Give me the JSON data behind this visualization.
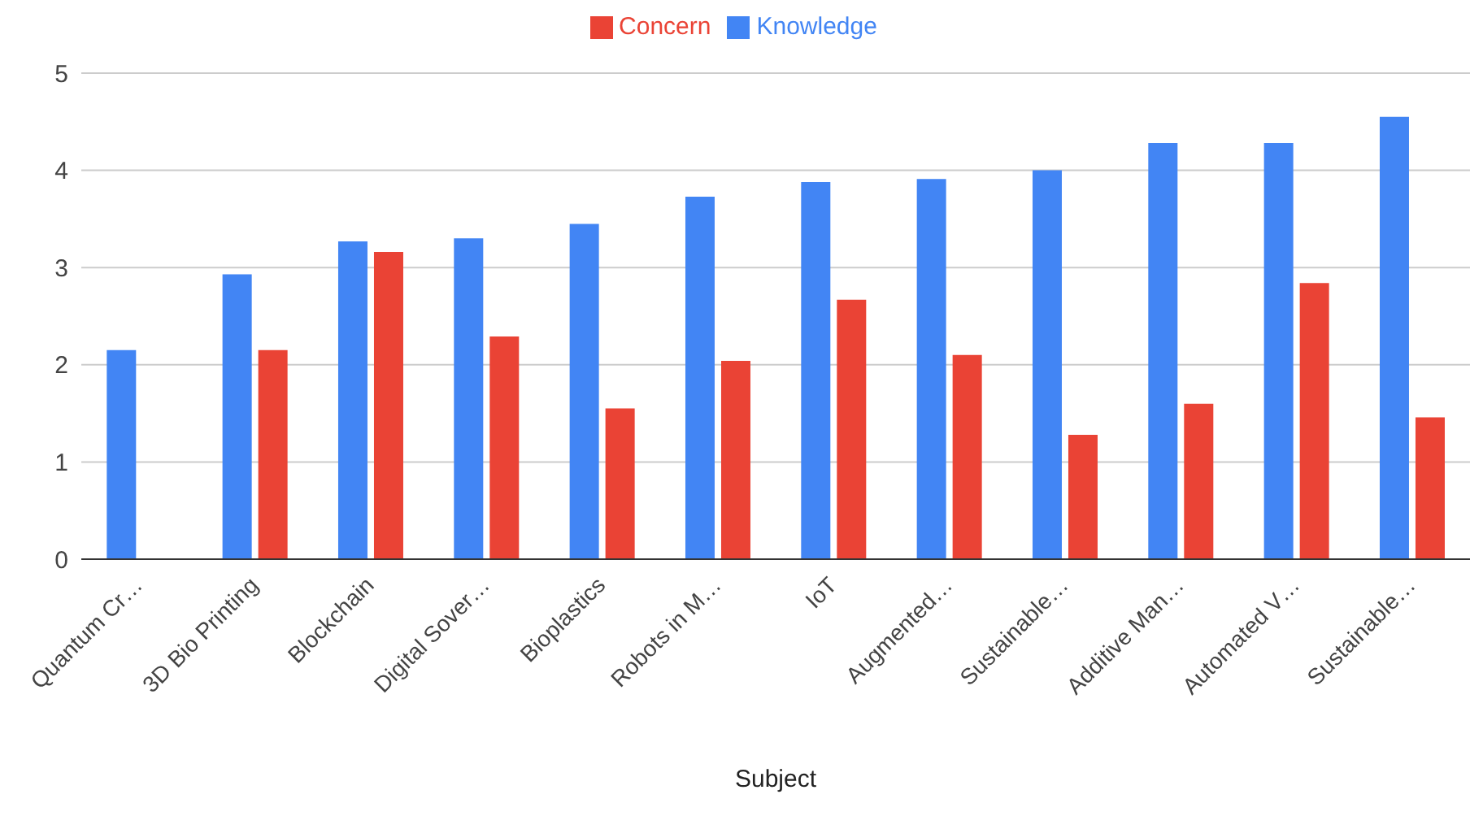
{
  "chart_data": {
    "type": "bar",
    "xlabel": "Subject",
    "categories": [
      "Quantum Cr…",
      "3D Bio Printing",
      "Blockchain",
      "Digital Sover…",
      "Bioplastics",
      "Robots in M…",
      "IoT",
      "Augmented…",
      "Sustainable…",
      "Additive Man…",
      "Automated V…",
      "Sustainable…"
    ],
    "series": [
      {
        "name": "Knowledge",
        "color": "#4285f4",
        "values": [
          2.15,
          2.93,
          3.27,
          3.3,
          3.45,
          3.73,
          3.88,
          3.91,
          4.0,
          4.28,
          4.28,
          4.55
        ]
      },
      {
        "name": "Concern",
        "color": "#ea4335",
        "values": [
          null,
          2.15,
          3.16,
          2.29,
          1.55,
          2.04,
          2.67,
          2.1,
          1.28,
          1.6,
          2.84,
          1.46
        ]
      }
    ],
    "ylim": [
      0,
      5
    ],
    "yticks": [
      0,
      1,
      2,
      3,
      4,
      5
    ],
    "grid": "y",
    "legend": "top"
  }
}
